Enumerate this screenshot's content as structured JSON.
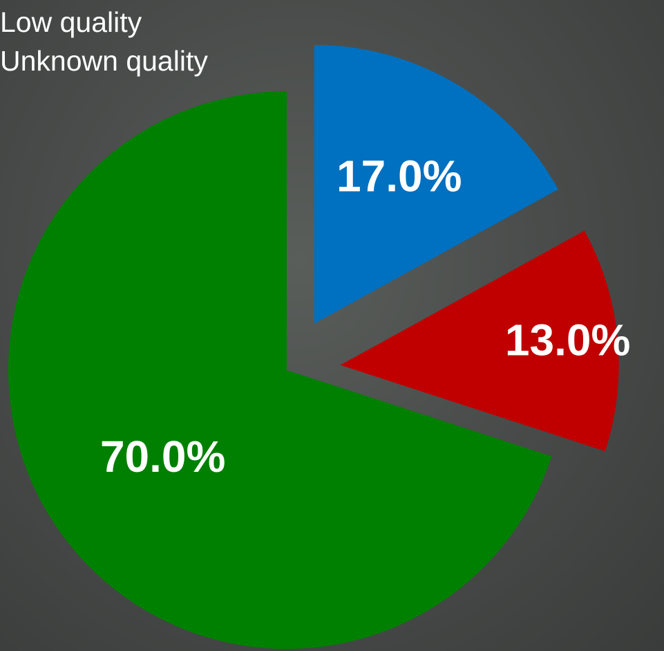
{
  "chart_data": {
    "type": "pie",
    "legend": {
      "placement": "top-left",
      "entries": [
        {
          "label": "Low quality",
          "color": "#c00000"
        },
        {
          "label": "Unknown quality",
          "color": "#008000"
        }
      ]
    },
    "slices": [
      {
        "value": 17.0,
        "label": "17.0%",
        "color": "#0070c0",
        "exploded": true
      },
      {
        "value": 13.0,
        "label": "13.0%",
        "color": "#c00000",
        "exploded": true
      },
      {
        "value": 70.0,
        "label": "70.0%",
        "color": "#008000",
        "exploded": false
      }
    ]
  }
}
